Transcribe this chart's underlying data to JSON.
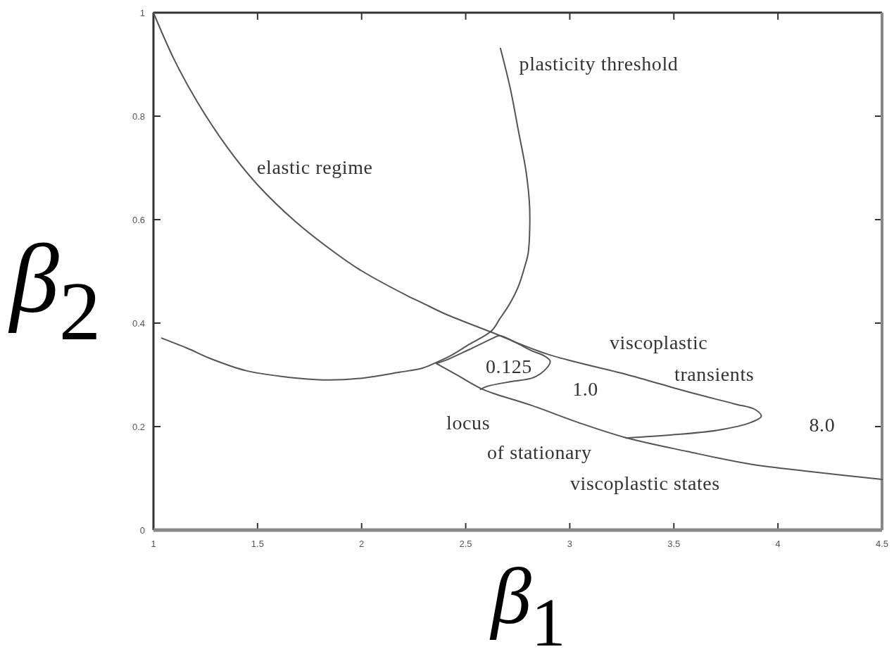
{
  "chart_data": {
    "type": "line",
    "xlabel": "β$_{1}$",
    "ylabel": "β$_{2}$",
    "xlim": [
      1,
      4.5
    ],
    "ylim": [
      0,
      1
    ],
    "xticks": [
      1,
      1.5,
      2,
      2.5,
      3,
      3.5,
      4,
      4.5
    ],
    "yticks": [
      0,
      0.2,
      0.4,
      0.6,
      0.8,
      1
    ],
    "series": [
      {
        "color": "#555555",
        "x": [
          1.0,
          1.1,
          1.21,
          1.356,
          1.503,
          1.683,
          1.886,
          2.0,
          2.224,
          2.292,
          2.4,
          2.62,
          2.893,
          3.27,
          3.56,
          3.79,
          3.89,
          3.92,
          3.87,
          3.71,
          3.49,
          3.27
        ],
        "values": [
          1.0,
          0.909,
          0.828,
          0.739,
          0.666,
          0.596,
          0.532,
          0.501,
          0.452,
          0.439,
          0.418,
          0.383,
          0.34,
          0.301,
          0.268,
          0.244,
          0.233,
          0.22,
          0.208,
          0.193,
          0.184,
          0.178
        ]
      },
      {
        "color": "#555555",
        "x": [
          2.667,
          2.715,
          2.754,
          2.788,
          2.805,
          2.808,
          2.8,
          2.782,
          2.753,
          2.708,
          2.663,
          2.624,
          2.517,
          2.427,
          2.359,
          2.292,
          2.18,
          2.01,
          1.84,
          1.615,
          1.446,
          1.277,
          1.165,
          1.04
        ],
        "values": [
          0.931,
          0.852,
          0.77,
          0.698,
          0.639,
          0.594,
          0.535,
          0.507,
          0.471,
          0.435,
          0.408,
          0.385,
          0.359,
          0.337,
          0.324,
          0.313,
          0.305,
          0.294,
          0.29,
          0.297,
          0.308,
          0.331,
          0.351,
          0.371
        ]
      },
      {
        "color": "#555555",
        "x": [
          2.359,
          2.403,
          2.517,
          2.631,
          2.663,
          2.742,
          2.82,
          2.876,
          2.906,
          2.877,
          2.82,
          2.718,
          2.605,
          2.571
        ],
        "values": [
          0.322,
          0.328,
          0.349,
          0.371,
          0.376,
          0.362,
          0.346,
          0.337,
          0.326,
          0.308,
          0.294,
          0.287,
          0.278,
          0.272
        ]
      },
      {
        "color": "#555555",
        "x": [
          2.359,
          2.461,
          2.571,
          2.627,
          2.816,
          3.04,
          3.266,
          3.564,
          3.861,
          4.158,
          4.5
        ],
        "values": [
          0.322,
          0.299,
          0.274,
          0.265,
          0.241,
          0.208,
          0.179,
          0.152,
          0.128,
          0.113,
          0.098
        ]
      }
    ],
    "annotations": [
      "plasticity threshold",
      "elastic regime",
      "viscoplastic",
      "transients",
      "0.125",
      "1.0",
      "8.0",
      "locus",
      "of stationary",
      "viscoplastic states"
    ]
  }
}
